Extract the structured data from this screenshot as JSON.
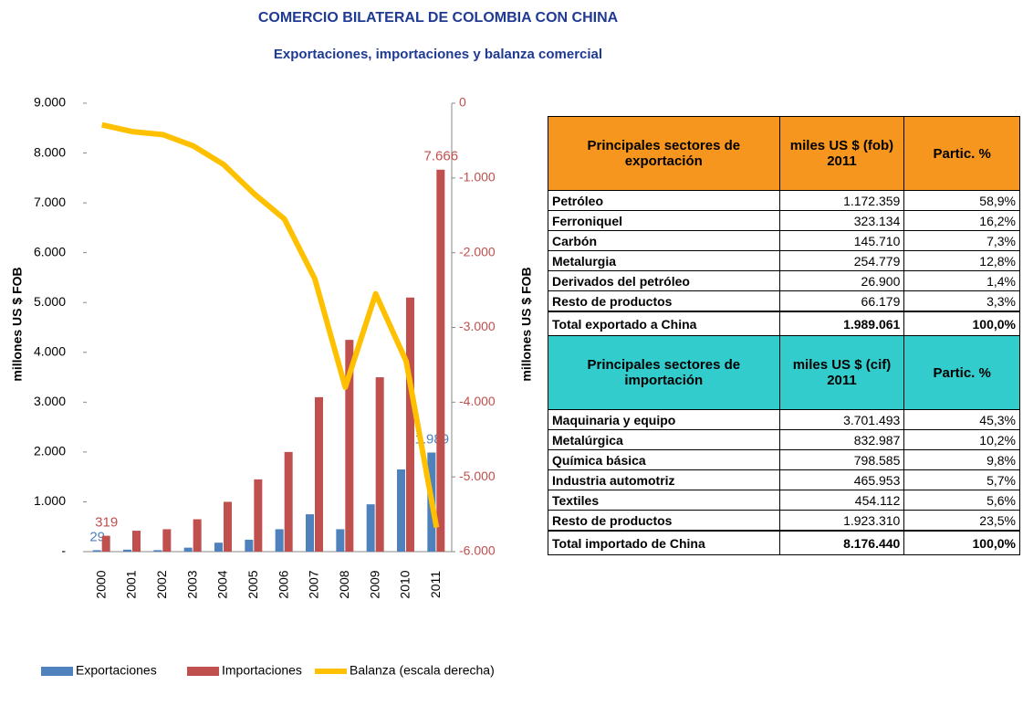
{
  "chart_data": {
    "type": "bar",
    "title": "COMERCIO BILATERAL DE COLOMBIA CON CHINA",
    "subtitle": "Exportaciones, importaciones y balanza comercial",
    "y_label": "millones US $ FOB",
    "y2_label": "millones US $ FOB",
    "categories": [
      "2000",
      "2001",
      "2002",
      "2003",
      "2004",
      "2005",
      "2006",
      "2007",
      "2008",
      "2009",
      "2010",
      "2011"
    ],
    "series": [
      {
        "name": "Exportaciones",
        "color": "#4f81bd",
        "type": "bar",
        "values": [
          29,
          40,
          30,
          80,
          180,
          240,
          450,
          750,
          450,
          950,
          1650,
          1989
        ],
        "value_labels": [
          "29",
          null,
          null,
          null,
          null,
          null,
          null,
          null,
          null,
          null,
          null,
          "1.989"
        ]
      },
      {
        "name": "Importaciones",
        "color": "#c0504d",
        "type": "bar",
        "values": [
          319,
          420,
          450,
          650,
          1000,
          1450,
          2000,
          3100,
          4250,
          3500,
          5100,
          7666
        ],
        "value_labels": [
          "319",
          null,
          null,
          null,
          null,
          null,
          null,
          null,
          null,
          null,
          null,
          "7.666"
        ]
      },
      {
        "name": "Balanza (escala derecha)",
        "color": "#ffc000",
        "type": "line",
        "axis": "y2",
        "values": [
          -290,
          -380,
          -420,
          -570,
          -820,
          -1210,
          -1550,
          -2350,
          -3800,
          -2550,
          -3450,
          -5677
        ]
      }
    ],
    "ylim": [
      0,
      9000
    ],
    "yticks": [
      {
        "value": 0,
        "label": "-"
      },
      {
        "value": 1000,
        "label": "1.000"
      },
      {
        "value": 2000,
        "label": "2.000"
      },
      {
        "value": 3000,
        "label": "3.000"
      },
      {
        "value": 4000,
        "label": "4.000"
      },
      {
        "value": 5000,
        "label": "5.000"
      },
      {
        "value": 6000,
        "label": "6.000"
      },
      {
        "value": 7000,
        "label": "7.000"
      },
      {
        "value": 8000,
        "label": "8.000"
      },
      {
        "value": 9000,
        "label": "9.000"
      }
    ],
    "y2lim": [
      -6000,
      0
    ],
    "y2ticks": [
      0,
      {
        "value": -1000,
        "label": "-1.000"
      },
      {
        "value": -2000,
        "label": "-2.000"
      },
      {
        "value": -3000,
        "label": "-3.000"
      },
      {
        "value": -4000,
        "label": "-4.000"
      },
      {
        "value": -5000,
        "label": "-5.000"
      },
      {
        "value": -6000,
        "label": "-6.000"
      }
    ],
    "legend": "bottom"
  },
  "table": {
    "export_header": [
      "Principales sectores de exportación",
      "miles US $ (fob) 2011",
      "Partic. %"
    ],
    "export_rows": [
      [
        "Petróleo",
        "1.172.359",
        "58,9%"
      ],
      [
        "Ferroniquel",
        "323.134",
        "16,2%"
      ],
      [
        "Carbón",
        "145.710",
        "7,3%"
      ],
      [
        "Metalurgia",
        "254.779",
        "12,8%"
      ],
      [
        "Derivados del petróleo",
        "26.900",
        "1,4%"
      ],
      [
        "Resto de productos",
        "66.179",
        "3,3%"
      ]
    ],
    "export_total": [
      "Total exportado a China",
      "1.989.061",
      "100,0%"
    ],
    "import_header": [
      "Principales sectores de importación",
      "miles US $ (cif) 2011",
      "Partic. %"
    ],
    "import_rows": [
      [
        "Maquinaria y equipo",
        "3.701.493",
        "45,3%"
      ],
      [
        "Metalúrgica",
        "832.987",
        "10,2%"
      ],
      [
        "Química básica",
        "798.585",
        "9,8%"
      ],
      [
        "Industria automotriz",
        "465.953",
        "5,7%"
      ],
      [
        "Textiles",
        "454.112",
        "5,6%"
      ],
      [
        "Resto de productos",
        "1.923.310",
        "23,5%"
      ]
    ],
    "import_total": [
      "Total importado de China",
      "8.176.440",
      "100,0%"
    ]
  }
}
